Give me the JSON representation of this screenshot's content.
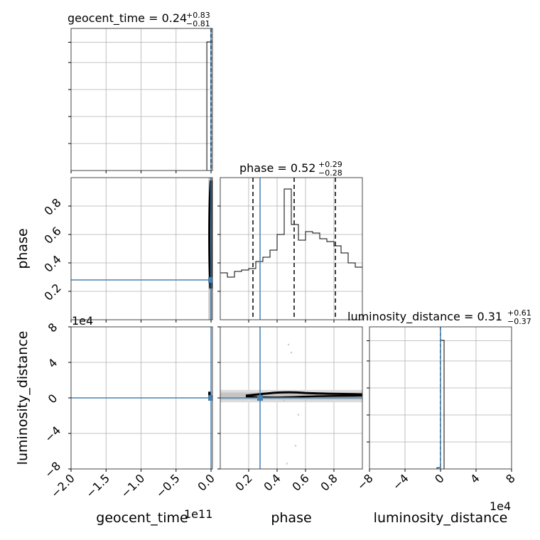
{
  "chart_data": {
    "type": "corner",
    "parameters": [
      "geocent_time",
      "phase",
      "luminosity_distance"
    ],
    "titles": {
      "geocent_time": {
        "name": "geocent_time",
        "median": "0.24",
        "plus": "+0.83",
        "minus": "−0.81"
      },
      "phase": {
        "name": "phase",
        "median": "0.52",
        "plus": "+0.29",
        "minus": "−0.28"
      },
      "luminosity_distance": {
        "name": "luminosity_distance",
        "median": "0.31",
        "plus": "+0.61",
        "minus": "−0.37"
      }
    },
    "axis_labels": {
      "x": [
        "geocent_time",
        "phase",
        "luminosity_distance"
      ],
      "y": [
        "phase",
        "luminosity_distance"
      ]
    },
    "offset_texts": {
      "geocent_time_x": "1e11",
      "luminosity_distance_x": "1e4",
      "luminosity_distance_y": "1e4"
    },
    "ticks": {
      "geocent_time": {
        "values": [
          -2.0,
          -1.5,
          -1.0,
          -0.5,
          0.0
        ],
        "labels": [
          "−2.0",
          "−1.5",
          "−1.0",
          "−0.5",
          "0.0"
        ],
        "range": [
          -2.0,
          0.02
        ]
      },
      "phase_x": {
        "values": [
          0.2,
          0.4,
          0.6,
          0.8
        ],
        "labels": [
          "0.2",
          "0.4",
          "0.6",
          "0.8"
        ],
        "range": [
          0.0,
          1.0
        ]
      },
      "phase_y": {
        "values": [
          0.2,
          0.4,
          0.6,
          0.8
        ],
        "labels": [
          "0.2",
          "0.4",
          "0.6",
          "0.8"
        ],
        "range": [
          0.0,
          1.0
        ]
      },
      "luminosity_distance_x": {
        "values": [
          -8,
          -4,
          0,
          4,
          8
        ],
        "labels": [
          "−8",
          "−4",
          "0",
          "4",
          "8"
        ],
        "range": [
          -8,
          8
        ]
      },
      "luminosity_distance_y": {
        "values": [
          -8,
          -4,
          0,
          4,
          8
        ],
        "labels": [
          "−8",
          "−4",
          "0",
          "4",
          "8"
        ],
        "range": [
          -8,
          8
        ]
      }
    },
    "truths": {
      "geocent_time": 0.0,
      "phase": 0.28,
      "luminosity_distance": 0.0
    },
    "quantiles": {
      "phase": [
        0.23,
        0.52,
        0.81
      ],
      "geocent_time": [
        -0.004,
        0.0,
        0.004
      ],
      "luminosity_distance": [
        -0.02
      ]
    },
    "histograms": {
      "geocent_time": {
        "edges": [
          -0.06,
          -0.02,
          0.02
        ],
        "counts": [
          1.0,
          1.0
        ]
      },
      "phase": {
        "edges": [
          0.0,
          0.05,
          0.1,
          0.15,
          0.2,
          0.25,
          0.3,
          0.35,
          0.4,
          0.45,
          0.5,
          0.55,
          0.6,
          0.65,
          0.7,
          0.75,
          0.8,
          0.85,
          0.9,
          0.95,
          1.0
        ],
        "counts": [
          0.33,
          0.3,
          0.34,
          0.35,
          0.36,
          0.41,
          0.44,
          0.49,
          0.6,
          0.92,
          0.67,
          0.56,
          0.62,
          0.61,
          0.57,
          0.55,
          0.52,
          0.47,
          0.4,
          0.37
        ],
        "ylim": [
          0.0,
          1.0
        ]
      },
      "luminosity_distance": {
        "edges": [
          -0.4,
          0.0,
          0.4,
          0.8
        ],
        "counts": [
          0.01,
          1.0,
          0.0
        ]
      }
    },
    "grid": true
  }
}
